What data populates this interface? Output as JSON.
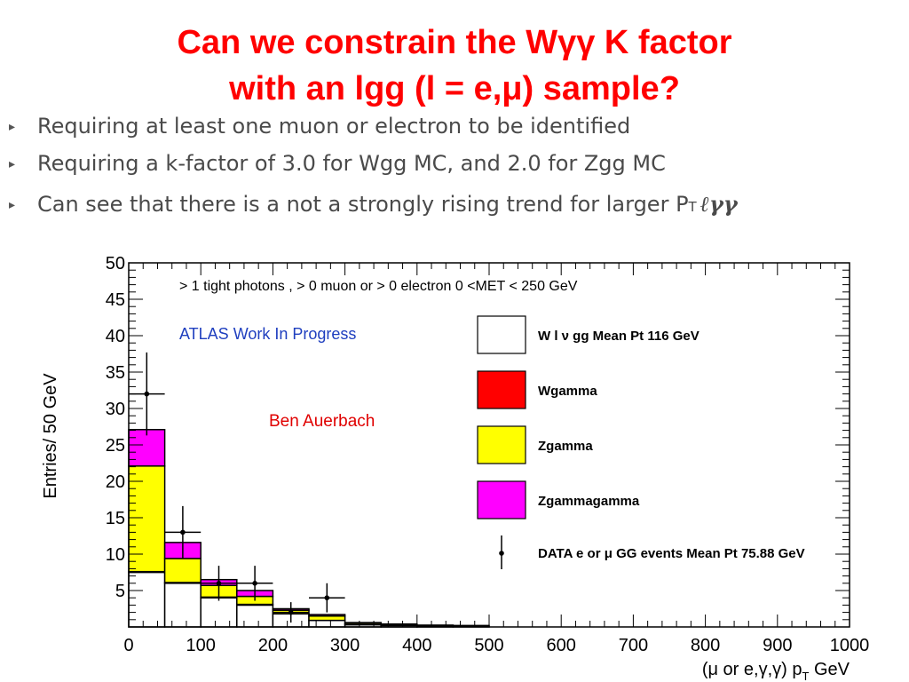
{
  "slide": {
    "title_line1": "Can we constrain the Wγγ K factor",
    "title_line2": "with an lgg (l = e,μ) sample?",
    "bullets": [
      "Requiring at least one muon or electron to be identified",
      "Requiring a k-factor of 3.0 for Wgg MC, and 2.0 for Zgg MC",
      "Can see that there is a not a strongly rising trend for larger P",
      "T",
      "ℓγγ"
    ],
    "colors": {
      "title": "#ff0000",
      "bullet_text": "#4a4a4a"
    }
  },
  "chart_data": {
    "type": "bar",
    "stacked": true,
    "ylabel": "Entries/ 50 GeV",
    "xlabel": "(μ or e,γ,γ) p",
    "xlabel_sub": "T",
    "xlabel_unit": " GeV",
    "xlim": [
      0,
      1000
    ],
    "ylim": [
      0,
      50
    ],
    "bin_width": 50,
    "x_ticks": [
      "0",
      "100",
      "200",
      "300",
      "400",
      "500",
      "600",
      "700",
      "800",
      "900",
      "1000"
    ],
    "y_ticks": [
      "5",
      "10",
      "15",
      "20",
      "25",
      "30",
      "35",
      "40",
      "45",
      "50"
    ],
    "annotations": {
      "selection": "> 1 tight photons , > 0 muon or > 0 electron 0 <MET < 250 GeV",
      "experiment": "ATLAS Work In Progress",
      "author": "Ben Auerbach"
    },
    "series": [
      {
        "name": "W l ν gg Mean Pt 116 GeV",
        "color": "#ffffff",
        "values": [
          7.5,
          6.0,
          4.0,
          3.0,
          1.8,
          0.9,
          0.3,
          0.2,
          0.1,
          0.1,
          0,
          0,
          0,
          0,
          0,
          0,
          0,
          0,
          0,
          0
        ]
      },
      {
        "name": "Wgamma",
        "color": "#ff0000",
        "values": [
          0.1,
          0.1,
          0.1,
          0.1,
          0,
          0,
          0,
          0,
          0,
          0,
          0,
          0,
          0,
          0,
          0,
          0,
          0,
          0,
          0,
          0
        ]
      },
      {
        "name": "Zgamma",
        "color": "#ffff00",
        "values": [
          14.5,
          3.3,
          1.6,
          1.1,
          0.5,
          0.6,
          0.2,
          0.1,
          0.1,
          0.1,
          0,
          0,
          0,
          0,
          0,
          0,
          0,
          0,
          0,
          0
        ]
      },
      {
        "name": "Zgammagamma",
        "color": "#ff00ff",
        "values": [
          5.0,
          2.2,
          0.8,
          0.8,
          0.2,
          0.2,
          0.1,
          0.1,
          0.05,
          0,
          0,
          0,
          0,
          0,
          0,
          0,
          0,
          0,
          0,
          0
        ]
      }
    ],
    "data_points": {
      "name": "DATA e or μ GG events Mean Pt 75.88 GeV",
      "x": [
        25,
        75,
        125,
        175,
        225,
        275
      ],
      "y": [
        32,
        13,
        6,
        6,
        2,
        4
      ],
      "yerr": [
        5.7,
        3.6,
        2.4,
        2.4,
        1.4,
        2.0
      ]
    },
    "legend_position": "right"
  }
}
